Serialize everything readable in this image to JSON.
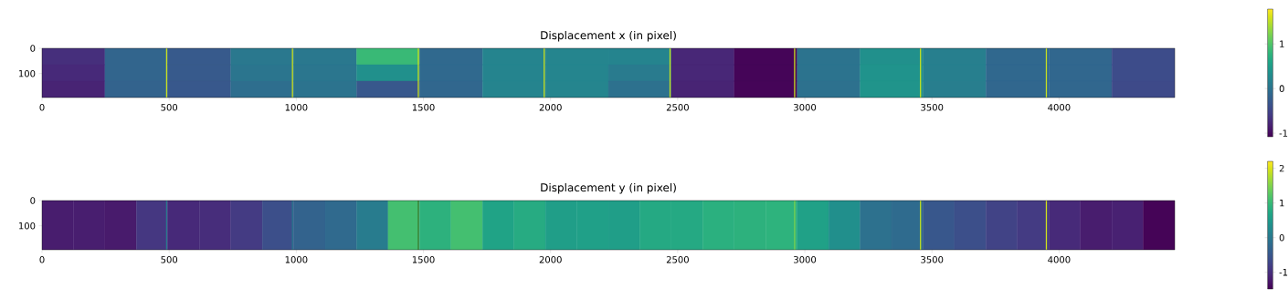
{
  "chart_data": [
    {
      "type": "heatmap",
      "title": "Displacement x (in pixel)",
      "x": [
        123.75,
        371.25,
        618.75,
        866.25,
        1113.75,
        1361.25,
        1608.75,
        1856.25,
        2103.75,
        2351.25,
        2598.75,
        2846.25,
        3093.75,
        3341.25,
        3588.75,
        3836.25,
        4083.75,
        4331.25
      ],
      "xlim": [
        0,
        4455
      ],
      "xticks": [
        0,
        500,
        1000,
        1500,
        2000,
        2500,
        3000,
        3500,
        4000
      ],
      "ylim": [
        195,
        0
      ],
      "yticks": [
        0,
        100
      ],
      "cells": [
        [
          -0.7,
          -0.16,
          -0.28,
          0.06,
          0.06,
          0.85,
          -0.11,
          0.21,
          0.22,
          0.2,
          -0.77,
          -1.05,
          0.0,
          0.35,
          0.15,
          -0.12,
          -0.13,
          -0.42
        ],
        [
          -0.75,
          -0.16,
          -0.28,
          0.03,
          0.04,
          0.35,
          -0.11,
          0.21,
          0.22,
          0.1,
          -0.77,
          -1.05,
          0.0,
          0.38,
          0.15,
          -0.12,
          -0.13,
          -0.42
        ],
        [
          -0.8,
          -0.18,
          -0.3,
          -0.05,
          0.0,
          -0.3,
          -0.13,
          0.2,
          0.22,
          -0.02,
          -0.8,
          -1.05,
          -0.02,
          0.4,
          0.13,
          -0.13,
          -0.14,
          -0.44
        ]
      ],
      "clim": [
        -1.08,
        1.78
      ],
      "cticks": [
        -1,
        0,
        1
      ],
      "ref_lines": [
        {
          "axis": "x",
          "value": 490,
          "color": "#c8e020"
        },
        {
          "axis": "x",
          "value": 985,
          "color": "#c8e020"
        },
        {
          "axis": "x",
          "value": 1480,
          "color": "#c8e020"
        },
        {
          "axis": "x",
          "value": 1975,
          "color": "#c8e020"
        },
        {
          "axis": "x",
          "value": 2470,
          "color": "#c8e020"
        },
        {
          "axis": "x",
          "value": 2960,
          "color": "#c8e020"
        },
        {
          "axis": "x",
          "value": 3455,
          "color": "#c8e020"
        },
        {
          "axis": "x",
          "value": 3950,
          "color": "#c8e020"
        }
      ]
    },
    {
      "type": "heatmap",
      "title": "Displacement y (in pixel)",
      "x": [
        61.875,
        185.625,
        309.375,
        433.125,
        556.875,
        680.625,
        804.375,
        928.125,
        1051.875,
        1175.625,
        1299.375,
        1423.125,
        1546.875,
        1670.625,
        1794.375,
        1918.125,
        2041.875,
        2165.625,
        2289.375,
        2413.125,
        2536.875,
        2660.625,
        2784.375,
        2908.125,
        3031.875,
        3155.625,
        3279.375,
        3403.125,
        3526.875,
        3650.625,
        3774.375,
        3898.125,
        4021.875,
        4145.625,
        4269.375,
        4393.125
      ],
      "xlim": [
        0,
        4455
      ],
      "xticks": [
        0,
        500,
        1000,
        1500,
        2000,
        2500,
        3000,
        3500,
        4000
      ],
      "ylim": [
        195,
        0
      ],
      "yticks": [
        0,
        100
      ],
      "cells": [
        [
          -1.2,
          -1.18,
          -1.22,
          -0.9,
          -1.06,
          -1.02,
          -0.85,
          -0.6,
          -0.32,
          -0.22,
          0.05,
          1.1,
          0.88,
          1.1,
          0.65,
          0.78,
          0.58,
          0.6,
          0.58,
          0.75,
          0.75,
          0.85,
          0.88,
          0.9,
          0.62,
          0.35,
          -0.12,
          -0.2,
          -0.49,
          -0.6,
          -0.75,
          -0.85,
          -1.05,
          -1.2,
          -1.15,
          -1.45
        ]
      ],
      "clim": [
        -1.48,
        2.2
      ],
      "cticks": [
        -1,
        0,
        1,
        2
      ],
      "ref_lines": [
        {
          "axis": "x",
          "value": 490,
          "color": "#2a788e"
        },
        {
          "axis": "x",
          "value": 985,
          "color": "#2a788e"
        },
        {
          "axis": "x",
          "value": 1480,
          "color": "#3a7a30"
        },
        {
          "axis": "x",
          "value": 2960,
          "color": "#7ad151"
        },
        {
          "axis": "x",
          "value": 3455,
          "color": "#c2df23"
        },
        {
          "axis": "x",
          "value": 3950,
          "color": "#d2e21b"
        }
      ]
    }
  ]
}
